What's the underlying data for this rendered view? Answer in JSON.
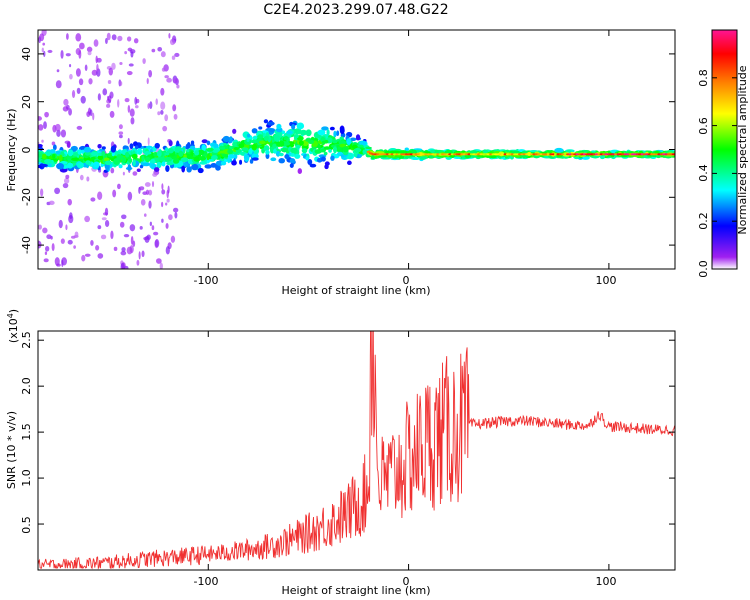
{
  "chart_data": [
    {
      "type": "heatmap",
      "title": "C2E4.2023.299.07.48.G22",
      "xlabel": "Height of straight line (km)",
      "ylabel": "Frequency (Hz)",
      "xlim": [
        -185,
        133
      ],
      "ylim": [
        -50,
        50
      ],
      "xticks": [
        -100,
        0,
        100
      ],
      "xtick_labels": [
        "-100",
        "0",
        "100"
      ],
      "yticks": [
        -40,
        -20,
        0,
        20,
        40
      ],
      "ytick_labels": [
        "-40",
        "-20",
        "0",
        "20",
        "40"
      ],
      "colorbar": {
        "label": "Normalized spectral amplitude",
        "range": [
          0,
          1
        ],
        "ticks": [
          0.0,
          0.2,
          0.4,
          0.6,
          0.8
        ],
        "tick_labels": [
          "0.0",
          "0.2",
          "0.4",
          "0.6",
          "0.8"
        ],
        "colors": [
          "#ffffff",
          "#a020f0",
          "#0000ff",
          "#00ffff",
          "#00ff00",
          "#ffff00",
          "#ff8000",
          "#ff0000",
          "#ff1493"
        ]
      },
      "ridge": {
        "x": [
          -185,
          -170,
          -150,
          -130,
          -110,
          -95,
          -80,
          -65,
          -50,
          -40,
          -30,
          -22,
          -18,
          -10,
          0,
          20,
          50,
          80,
          110,
          133
        ],
        "center_hz": [
          -3,
          -4,
          -4,
          -3,
          -3,
          -2,
          2,
          3,
          3,
          2,
          1,
          0,
          -2,
          -2,
          -2,
          -2,
          -2,
          -2,
          -2,
          -2
        ],
        "spread_hz": [
          6,
          7,
          7,
          7,
          8,
          8,
          10,
          12,
          14,
          12,
          8,
          5,
          3,
          2.5,
          2.5,
          2,
          2,
          2,
          1.5,
          1.5
        ]
      }
    },
    {
      "type": "line",
      "xlabel": "Height of straight line (km)",
      "ylabel": "SNR (10 * v/v)",
      "y_scale_label": "(x10",
      "y_scale_exp": "4",
      "y_scale_close": ")",
      "xlim": [
        -185,
        133
      ],
      "ylim": [
        0,
        2.6
      ],
      "xticks": [
        -100,
        0,
        100
      ],
      "xtick_labels": [
        "-100",
        "0",
        "100"
      ],
      "yticks": [
        0.5,
        1.0,
        1.5,
        2.0,
        2.5
      ],
      "ytick_labels": [
        "0.5",
        "1.0",
        "1.5",
        "2.0",
        "2.5"
      ],
      "color": "#f03030",
      "series": [
        {
          "name": "SNR",
          "x": [
            -185,
            -170,
            -150,
            -130,
            -110,
            -95,
            -80,
            -70,
            -60,
            -50,
            -40,
            -30,
            -25,
            -20,
            -18,
            -15,
            -10,
            -5,
            0,
            5,
            10,
            20,
            30,
            40,
            50,
            60,
            70,
            80,
            90,
            95,
            100,
            110,
            120,
            133
          ],
          "y": [
            0.05,
            0.06,
            0.08,
            0.12,
            0.15,
            0.18,
            0.22,
            0.26,
            0.32,
            0.4,
            0.5,
            0.62,
            0.75,
            0.85,
            2.6,
            0.95,
            1.0,
            1.1,
            1.2,
            1.3,
            1.4,
            1.52,
            1.58,
            1.6,
            1.62,
            1.62,
            1.6,
            1.58,
            1.57,
            1.7,
            1.56,
            1.55,
            1.53,
            1.52
          ]
        }
      ]
    }
  ]
}
